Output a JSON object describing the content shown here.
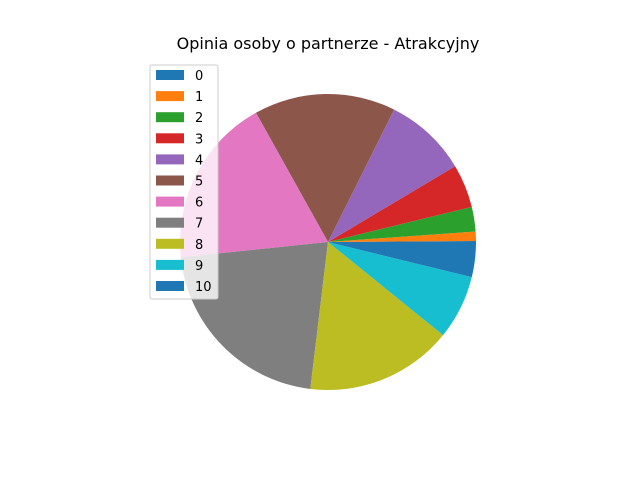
{
  "chart_data": {
    "type": "pie",
    "title": "Opinia osoby o partnerze - Atrakcyjny",
    "categories": [
      "0",
      "1",
      "2",
      "3",
      "4",
      "5",
      "6",
      "7",
      "8",
      "9",
      "10"
    ],
    "values": [
      0.1,
      1.0,
      2.6,
      4.6,
      8.8,
      15.0,
      18.0,
      20.8,
      15.6,
      6.8,
      3.7
    ],
    "colors": [
      "#1f77b4",
      "#ff7f0e",
      "#2ca02c",
      "#d62728",
      "#9467bd",
      "#8c564b",
      "#e377c2",
      "#7f7f7f",
      "#bcbd22",
      "#17becf",
      "#1f77b4"
    ],
    "start_angle_deg": 0,
    "direction": "counterclockwise",
    "legend_placement": "upper-left"
  }
}
